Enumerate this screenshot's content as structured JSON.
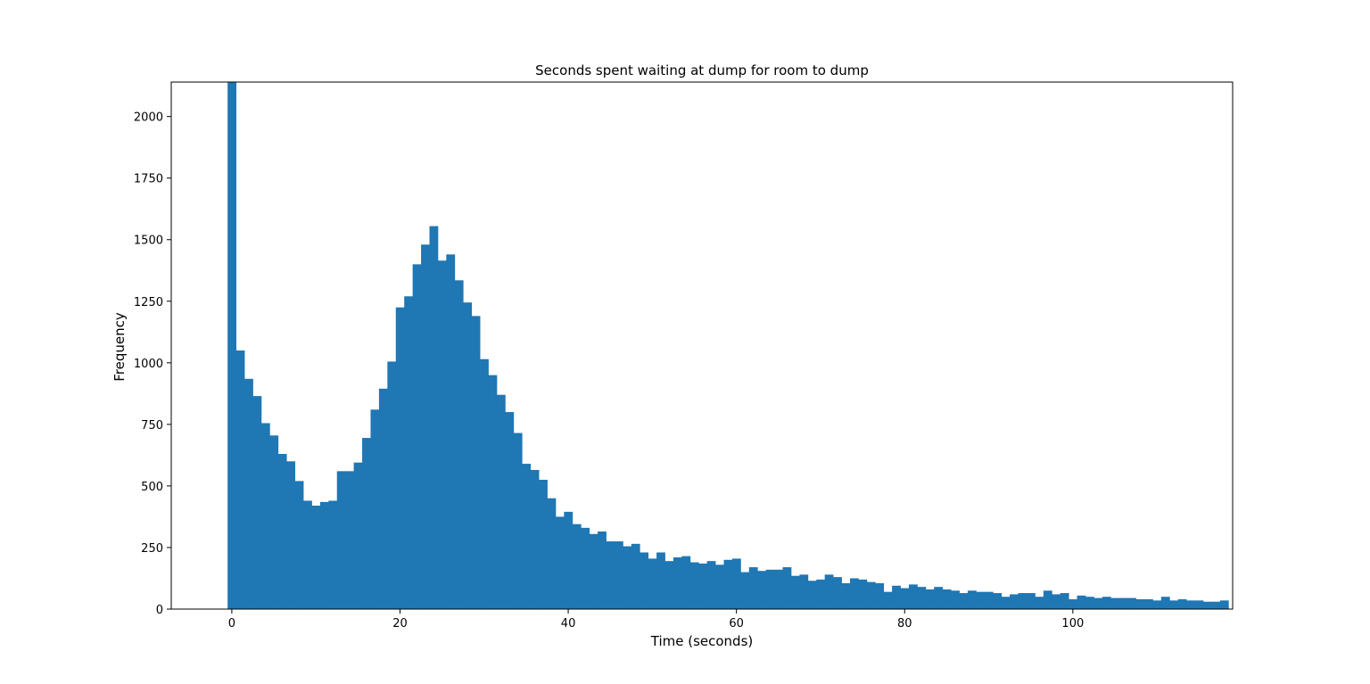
{
  "chart_data": {
    "type": "bar",
    "title": "Seconds spent waiting at dump for room to dump",
    "xlabel": "Time (seconds)",
    "ylabel": "Frequency",
    "xlim": [
      -7.2,
      119.0
    ],
    "ylim": [
      0,
      2140
    ],
    "xticks": [
      0,
      20,
      40,
      60,
      80,
      100
    ],
    "yticks": [
      0,
      250,
      500,
      750,
      1000,
      1250,
      1500,
      1750,
      2000
    ],
    "grid": false,
    "legend": "none",
    "bar_color": "#1f77b4",
    "bin_start": -0.5,
    "bin_width": 1.0,
    "values": [
      2140,
      1050,
      935,
      865,
      755,
      705,
      630,
      600,
      520,
      440,
      420,
      435,
      440,
      560,
      560,
      595,
      695,
      810,
      895,
      1005,
      1225,
      1270,
      1400,
      1480,
      1555,
      1415,
      1440,
      1335,
      1245,
      1190,
      1015,
      950,
      870,
      800,
      715,
      590,
      565,
      525,
      450,
      375,
      395,
      345,
      330,
      305,
      315,
      275,
      275,
      255,
      265,
      230,
      205,
      230,
      195,
      210,
      215,
      190,
      185,
      195,
      180,
      200,
      205,
      150,
      170,
      155,
      160,
      160,
      170,
      135,
      140,
      115,
      120,
      140,
      130,
      105,
      125,
      120,
      110,
      105,
      70,
      95,
      85,
      100,
      90,
      80,
      90,
      80,
      75,
      65,
      75,
      70,
      70,
      65,
      50,
      60,
      65,
      65,
      50,
      75,
      60,
      65,
      40,
      55,
      50,
      45,
      50,
      45,
      45,
      45,
      40,
      40,
      35,
      50,
      35,
      40,
      35,
      35,
      30,
      30,
      35
    ]
  }
}
